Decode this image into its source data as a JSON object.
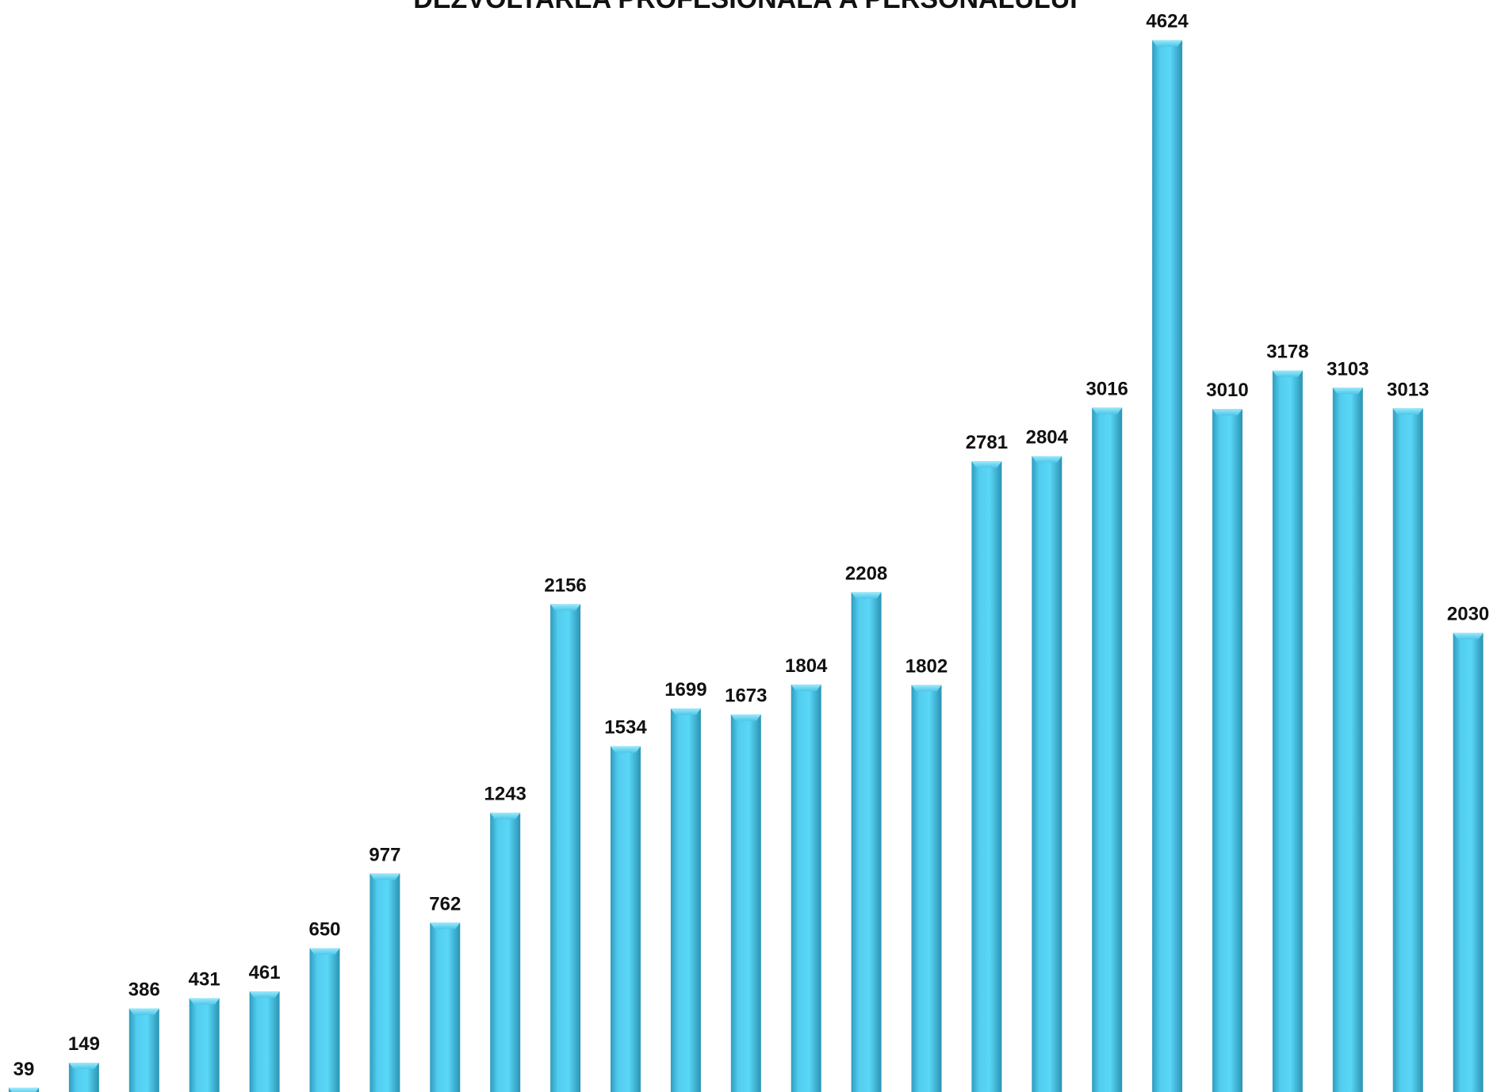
{
  "chart_data": {
    "type": "bar",
    "title": "DEZVOLTAREA PROFESIONALĂ  A PERSONALULUI",
    "values": [
      39,
      149,
      386,
      431,
      461,
      650,
      977,
      762,
      1243,
      2156,
      1534,
      1699,
      1673,
      1804,
      2208,
      1802,
      2781,
      2804,
      3016,
      4624,
      3010,
      3178,
      3103,
      3013,
      2030
    ],
    "color": "#4fc8ec",
    "ylim": [
      0,
      4800
    ]
  }
}
